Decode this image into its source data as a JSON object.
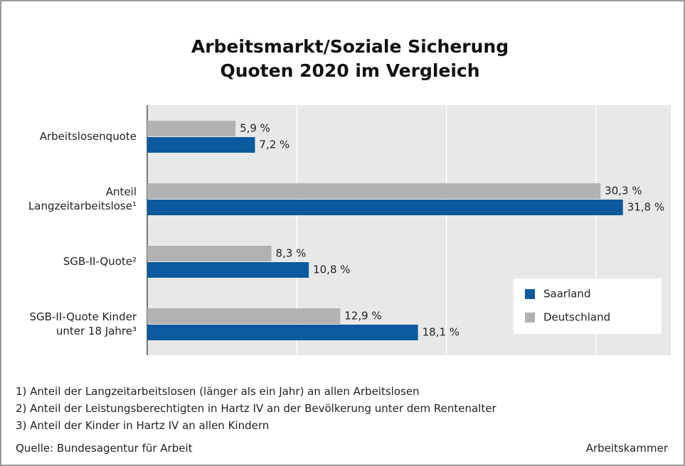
{
  "chart_data": {
    "type": "hbar",
    "title": "Arbeitsmarkt/Soziale Sicherung",
    "subtitle": "Quoten 2020 im Vergleich",
    "categories": [
      "Arbeitslosenquote",
      "Anteil Langzeitarbeitslose¹",
      "SGB-II-Quote²",
      "SGB-II-Quote Kinder unter 18 Jahre³"
    ],
    "series": [
      {
        "name": "Saarland",
        "color": "#0b5a9e",
        "values": [
          7.2,
          31.8,
          10.8,
          18.1
        ],
        "value_labels": [
          "7,2 %",
          "31,8 %",
          "10,8 %",
          "18,1 %"
        ]
      },
      {
        "name": "Deutschland",
        "color": "#b2b2b2",
        "values": [
          5.9,
          30.3,
          8.3,
          12.9
        ],
        "value_labels": [
          "5,9 %",
          "30,3 %",
          "8,3 %",
          "12,9 %"
        ]
      }
    ],
    "xlim": [
      0,
      35
    ],
    "xticks": [
      0,
      10,
      20,
      30
    ],
    "grid": true,
    "legend": "lower right",
    "footnotes": [
      "1) Anteil der Langzeitarbeitslosen (länger als ein Jahr) an allen Arbeitslosen",
      "2) Anteil der Leistungsberechtigten in Hartz IV an der Bevölkerung unter dem Rentenalter",
      "3) Anteil der Kinder in Hartz IV an allen Kindern"
    ],
    "source": "Quelle: Bundesagentur für Arbeit",
    "credit": "Arbeitskammer"
  }
}
